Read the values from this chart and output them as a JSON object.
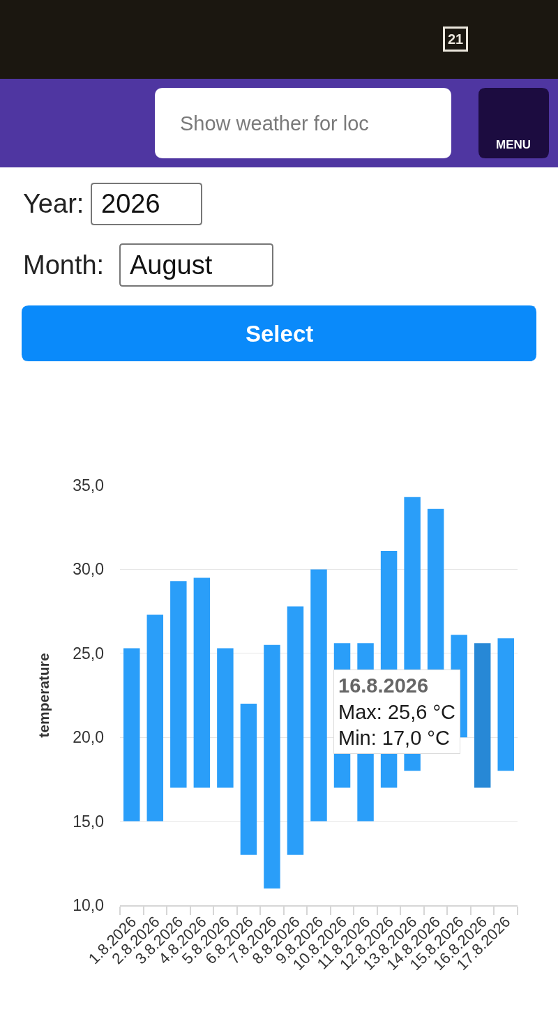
{
  "chart_data": {
    "type": "bar",
    "ylabel": "temperature",
    "categories": [
      "1.8.2026",
      "2.8.2026",
      "3.8.2026",
      "4.8.2026",
      "5.8.2026",
      "6.8.2026",
      "7.8.2026",
      "8.8.2026",
      "9.8.2026",
      "10.8.2026",
      "11.8.2026",
      "12.8.2026",
      "13.8.2026",
      "14.8.2026",
      "15.8.2026",
      "16.8.2026",
      "17.8.2026"
    ],
    "base": [
      15.0,
      15.0,
      17.0,
      17.0,
      17.0,
      13.0,
      11.0,
      13.0,
      15.0,
      17.0,
      15.0,
      17.0,
      18.0,
      20.0,
      20.0,
      17.0,
      18.0
    ],
    "values": [
      10.3,
      12.3,
      12.3,
      12.5,
      8.3,
      9.0,
      14.5,
      14.8,
      15.0,
      8.6,
      10.6,
      14.1,
      16.3,
      13.6,
      6.1,
      8.6,
      7.9
    ],
    "colors": [
      "#2a9ef9",
      "#2a9ef9",
      "#2a9ef9",
      "#2a9ef9",
      "#2a9ef9",
      "#2a9ef9",
      "#2a9ef9",
      "#2a9ef9",
      "#2a9ef9",
      "#2a9ef9",
      "#2a9ef9",
      "#2a9ef9",
      "#2a9ef9",
      "#2a9ef9",
      "#2a9ef9",
      "#2788d6",
      "#2a9ef9"
    ],
    "ylim": [
      10,
      35
    ],
    "yticks": [
      {
        "value": 10,
        "label": "10,0"
      },
      {
        "value": 15,
        "label": "15,0"
      },
      {
        "value": 20,
        "label": "20,0"
      },
      {
        "value": 25,
        "label": "25,0"
      },
      {
        "value": 30,
        "label": "30,0"
      },
      {
        "value": 35,
        "label": "35,0"
      }
    ],
    "grid": "y",
    "annotations": [
      "21",
      "Show weather for loc",
      "MENU",
      "Year:",
      "2026",
      "Month:",
      "August",
      "Select",
      {
        "text": "16.8.2026\nMax: 25,6 °C\nMin: 17,0 °C",
        "x": "16.8.2026",
        "y": 25.6
      }
    ]
  }
}
